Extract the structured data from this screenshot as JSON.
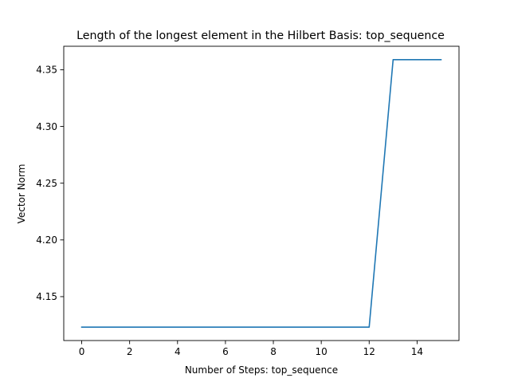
{
  "chart_data": {
    "type": "line",
    "title": "Length of the longest element in the Hilbert Basis: top_sequence",
    "xlabel": "Number of Steps: top_sequence",
    "ylabel": "Vector Norm",
    "x": [
      0,
      1,
      2,
      3,
      4,
      5,
      6,
      7,
      8,
      9,
      10,
      11,
      12,
      13,
      14,
      15
    ],
    "series": [
      {
        "values": [
          4.1231,
          4.1231,
          4.1231,
          4.1231,
          4.1231,
          4.1231,
          4.1231,
          4.1231,
          4.1231,
          4.1231,
          4.1231,
          4.1231,
          4.1231,
          4.3589,
          4.3589,
          4.3589
        ],
        "color": "#1f77b4"
      }
    ],
    "xticks": [
      "0",
      "2",
      "4",
      "6",
      "8",
      "10",
      "12",
      "14"
    ],
    "yticks": [
      "4.15",
      "4.20",
      "4.25",
      "4.30",
      "4.35"
    ],
    "xlim": [
      -0.75,
      15.75
    ],
    "ylim": [
      4.1113,
      4.3707
    ],
    "grid": false,
    "legend": "none"
  }
}
